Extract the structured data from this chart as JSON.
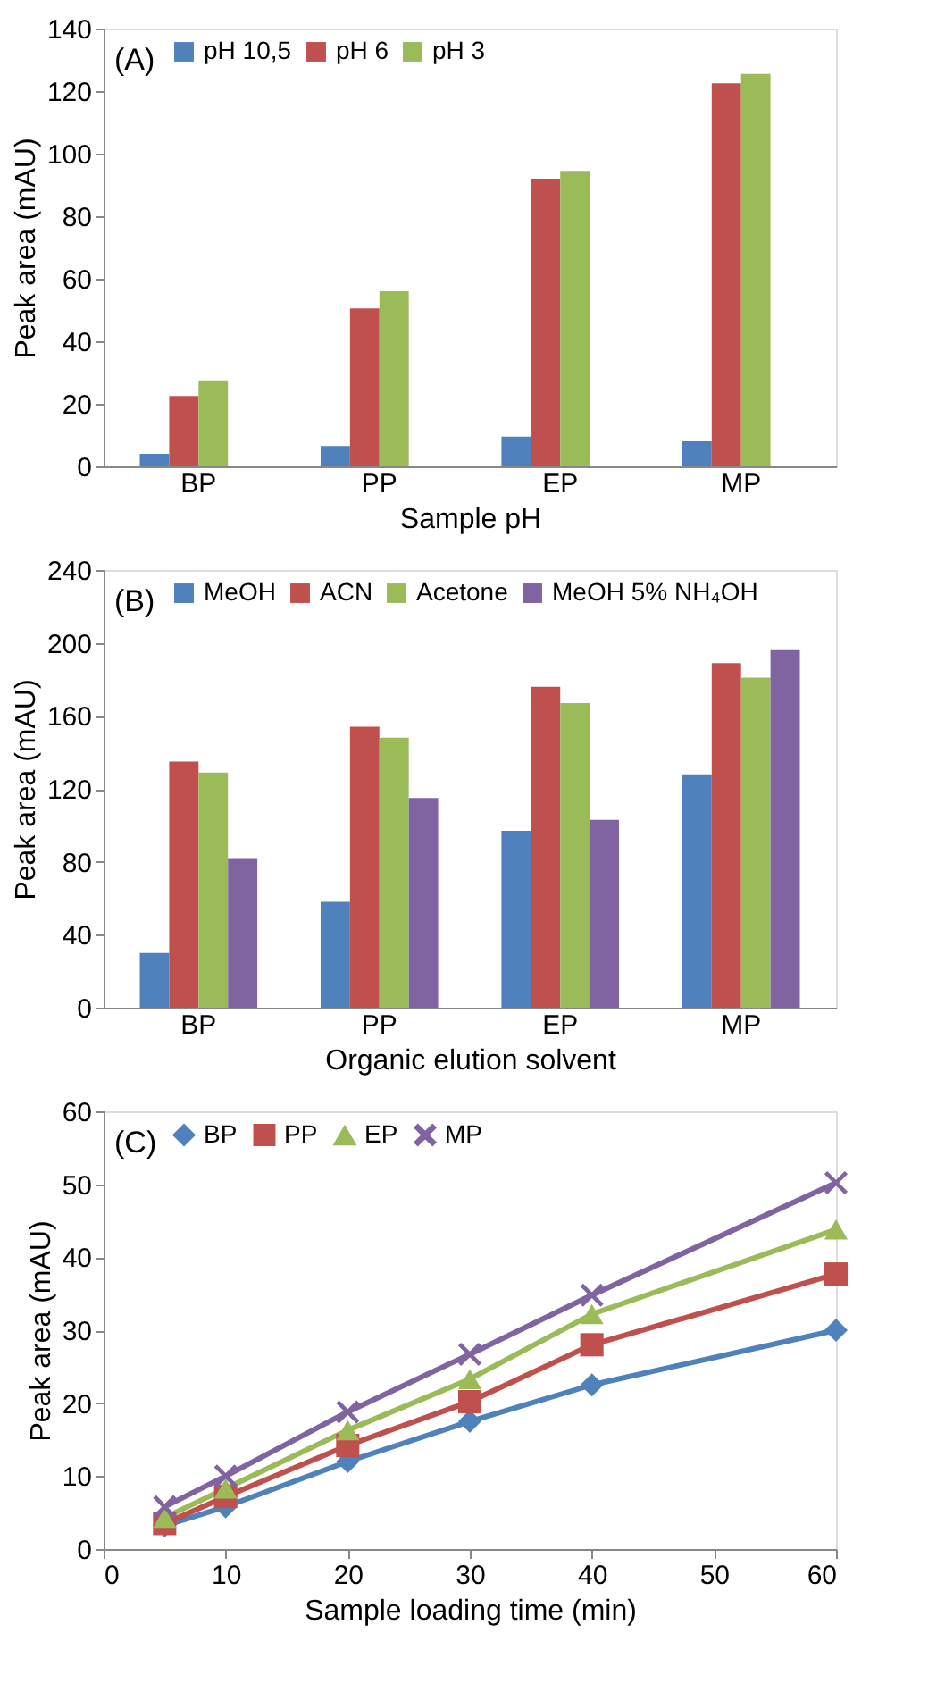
{
  "chart_data": [
    {
      "type": "bar",
      "annotations": [
        "(A)"
      ],
      "xlabel": "Sample pH",
      "ylabel": "Peak area  (mAU)",
      "categories": [
        "BP",
        "PP",
        "EP",
        "MP"
      ],
      "ylim": [
        0,
        140
      ],
      "yticks": [
        0,
        20,
        40,
        60,
        80,
        100,
        120,
        140
      ],
      "grid": false,
      "legend": "top left",
      "series": [
        {
          "name": "pH 10,5",
          "color": "#4f81bd",
          "values": [
            4,
            6.5,
            9.5,
            8
          ]
        },
        {
          "name": "pH 6",
          "color": "#c0504d",
          "values": [
            22.5,
            50.5,
            92,
            122.5
          ]
        },
        {
          "name": "pH 3",
          "color": "#9bbb59",
          "values": [
            27.5,
            56,
            94.5,
            125.5
          ]
        }
      ]
    },
    {
      "type": "bar",
      "annotations": [
        "(B)"
      ],
      "xlabel": "Organic elution solvent",
      "ylabel": "Peak area  (mAU)",
      "categories": [
        "BP",
        "PP",
        "EP",
        "MP"
      ],
      "ylim": [
        0,
        240
      ],
      "yticks": [
        0,
        40,
        80,
        120,
        160,
        200,
        240
      ],
      "grid": false,
      "legend": "top left",
      "series": [
        {
          "name": "MeOH",
          "color": "#4f81bd",
          "values": [
            30,
            58,
            97,
            128
          ]
        },
        {
          "name": "ACN",
          "color": "#c0504d",
          "values": [
            135,
            154,
            176,
            189
          ]
        },
        {
          "name": "Acetone",
          "color": "#9bbb59",
          "values": [
            129,
            148,
            167,
            181
          ]
        },
        {
          "name": "MeOH 5% NH₄OH",
          "color": "#8064a2",
          "values": [
            82,
            115,
            103,
            196
          ]
        }
      ]
    },
    {
      "type": "line",
      "annotations": [
        "(C)"
      ],
      "xlabel": "Sample loading time (min)",
      "ylabel": "Peak area  (mAU)",
      "x": [
        5,
        10,
        20,
        30,
        40,
        60
      ],
      "xlim": [
        0,
        60
      ],
      "xticks": [
        0,
        10,
        20,
        30,
        40,
        50,
        60
      ],
      "ylim": [
        0,
        60
      ],
      "yticks": [
        0,
        10,
        20,
        30,
        40,
        50,
        60
      ],
      "grid": false,
      "legend": "top left",
      "line_style": "solid",
      "series": [
        {
          "name": "BP",
          "color": "#4f81bd",
          "marker": "diamond",
          "values": [
            3.2,
            5.8,
            12,
            17.5,
            22.5,
            30
          ]
        },
        {
          "name": "PP",
          "color": "#c0504d",
          "marker": "square",
          "values": [
            3.5,
            7.2,
            14.2,
            20.2,
            28,
            37.7
          ]
        },
        {
          "name": "EP",
          "color": "#9bbb59",
          "marker": "triangle",
          "values": [
            4.3,
            8.3,
            16.3,
            23.3,
            32.2,
            43.8
          ]
        },
        {
          "name": "MP",
          "color": "#8064a2",
          "marker": "cross",
          "values": [
            5.8,
            10,
            18.8,
            26.7,
            34.8,
            50.2
          ]
        }
      ]
    }
  ]
}
